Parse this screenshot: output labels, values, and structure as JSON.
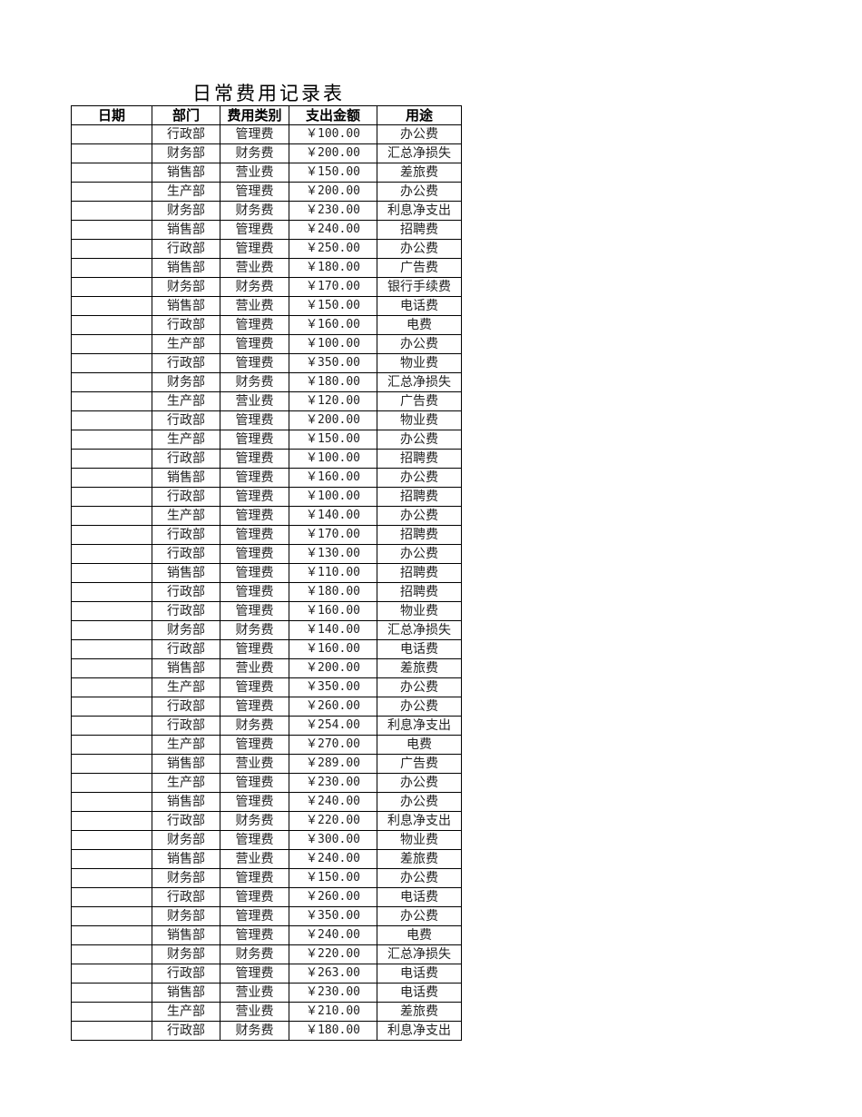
{
  "title": "日常费用记录表",
  "headers": [
    "日期",
    "部门",
    "费用类别",
    "支出金额",
    "用途"
  ],
  "rows": [
    {
      "date": "",
      "dept": "行政部",
      "category": "管理费",
      "amount": "￥100.00",
      "purpose": "办公费"
    },
    {
      "date": "",
      "dept": "财务部",
      "category": "财务费",
      "amount": "￥200.00",
      "purpose": "汇总净损失"
    },
    {
      "date": "",
      "dept": "销售部",
      "category": "营业费",
      "amount": "￥150.00",
      "purpose": "差旅费"
    },
    {
      "date": "",
      "dept": "生产部",
      "category": "管理费",
      "amount": "￥200.00",
      "purpose": "办公费"
    },
    {
      "date": "",
      "dept": "财务部",
      "category": "财务费",
      "amount": "￥230.00",
      "purpose": "利息净支出"
    },
    {
      "date": "",
      "dept": "销售部",
      "category": "管理费",
      "amount": "￥240.00",
      "purpose": "招聘费"
    },
    {
      "date": "",
      "dept": "行政部",
      "category": "管理费",
      "amount": "￥250.00",
      "purpose": "办公费"
    },
    {
      "date": "",
      "dept": "销售部",
      "category": "营业费",
      "amount": "￥180.00",
      "purpose": "广告费"
    },
    {
      "date": "",
      "dept": "财务部",
      "category": "财务费",
      "amount": "￥170.00",
      "purpose": "银行手续费"
    },
    {
      "date": "",
      "dept": "销售部",
      "category": "营业费",
      "amount": "￥150.00",
      "purpose": "电话费"
    },
    {
      "date": "",
      "dept": "行政部",
      "category": "管理费",
      "amount": "￥160.00",
      "purpose": "电费"
    },
    {
      "date": "",
      "dept": "生产部",
      "category": "管理费",
      "amount": "￥100.00",
      "purpose": "办公费"
    },
    {
      "date": "",
      "dept": "行政部",
      "category": "管理费",
      "amount": "￥350.00",
      "purpose": "物业费"
    },
    {
      "date": "",
      "dept": "财务部",
      "category": "财务费",
      "amount": "￥180.00",
      "purpose": "汇总净损失"
    },
    {
      "date": "",
      "dept": "生产部",
      "category": "营业费",
      "amount": "￥120.00",
      "purpose": "广告费"
    },
    {
      "date": "",
      "dept": "行政部",
      "category": "管理费",
      "amount": "￥200.00",
      "purpose": "物业费"
    },
    {
      "date": "",
      "dept": "生产部",
      "category": "管理费",
      "amount": "￥150.00",
      "purpose": "办公费"
    },
    {
      "date": "",
      "dept": "行政部",
      "category": "管理费",
      "amount": "￥100.00",
      "purpose": "招聘费"
    },
    {
      "date": "",
      "dept": "销售部",
      "category": "管理费",
      "amount": "￥160.00",
      "purpose": "办公费"
    },
    {
      "date": "",
      "dept": "行政部",
      "category": "管理费",
      "amount": "￥100.00",
      "purpose": "招聘费"
    },
    {
      "date": "",
      "dept": "生产部",
      "category": "管理费",
      "amount": "￥140.00",
      "purpose": "办公费"
    },
    {
      "date": "",
      "dept": "行政部",
      "category": "管理费",
      "amount": "￥170.00",
      "purpose": "招聘费"
    },
    {
      "date": "",
      "dept": "行政部",
      "category": "管理费",
      "amount": "￥130.00",
      "purpose": "办公费"
    },
    {
      "date": "",
      "dept": "销售部",
      "category": "管理费",
      "amount": "￥110.00",
      "purpose": "招聘费"
    },
    {
      "date": "",
      "dept": "行政部",
      "category": "管理费",
      "amount": "￥180.00",
      "purpose": "招聘费"
    },
    {
      "date": "",
      "dept": "行政部",
      "category": "管理费",
      "amount": "￥160.00",
      "purpose": "物业费"
    },
    {
      "date": "",
      "dept": "财务部",
      "category": "财务费",
      "amount": "￥140.00",
      "purpose": "汇总净损失"
    },
    {
      "date": "",
      "dept": "行政部",
      "category": "管理费",
      "amount": "￥160.00",
      "purpose": "电话费"
    },
    {
      "date": "",
      "dept": "销售部",
      "category": "营业费",
      "amount": "￥200.00",
      "purpose": "差旅费"
    },
    {
      "date": "",
      "dept": "生产部",
      "category": "管理费",
      "amount": "￥350.00",
      "purpose": "办公费"
    },
    {
      "date": "",
      "dept": "行政部",
      "category": "管理费",
      "amount": "￥260.00",
      "purpose": "办公费"
    },
    {
      "date": "",
      "dept": "行政部",
      "category": "财务费",
      "amount": "￥254.00",
      "purpose": "利息净支出"
    },
    {
      "date": "",
      "dept": "生产部",
      "category": "管理费",
      "amount": "￥270.00",
      "purpose": "电费"
    },
    {
      "date": "",
      "dept": "销售部",
      "category": "营业费",
      "amount": "￥289.00",
      "purpose": "广告费"
    },
    {
      "date": "",
      "dept": "生产部",
      "category": "管理费",
      "amount": "￥230.00",
      "purpose": "办公费"
    },
    {
      "date": "",
      "dept": "销售部",
      "category": "管理费",
      "amount": "￥240.00",
      "purpose": "办公费"
    },
    {
      "date": "",
      "dept": "行政部",
      "category": "财务费",
      "amount": "￥220.00",
      "purpose": "利息净支出"
    },
    {
      "date": "",
      "dept": "财务部",
      "category": "管理费",
      "amount": "￥300.00",
      "purpose": "物业费"
    },
    {
      "date": "",
      "dept": "销售部",
      "category": "营业费",
      "amount": "￥240.00",
      "purpose": "差旅费"
    },
    {
      "date": "",
      "dept": "财务部",
      "category": "管理费",
      "amount": "￥150.00",
      "purpose": "办公费"
    },
    {
      "date": "",
      "dept": "行政部",
      "category": "管理费",
      "amount": "￥260.00",
      "purpose": "电话费"
    },
    {
      "date": "",
      "dept": "财务部",
      "category": "管理费",
      "amount": "￥350.00",
      "purpose": "办公费"
    },
    {
      "date": "",
      "dept": "销售部",
      "category": "管理费",
      "amount": "￥240.00",
      "purpose": "电费"
    },
    {
      "date": "",
      "dept": "财务部",
      "category": "财务费",
      "amount": "￥220.00",
      "purpose": "汇总净损失"
    },
    {
      "date": "",
      "dept": "行政部",
      "category": "管理费",
      "amount": "￥263.00",
      "purpose": "电话费"
    },
    {
      "date": "",
      "dept": "销售部",
      "category": "营业费",
      "amount": "￥230.00",
      "purpose": "电话费"
    },
    {
      "date": "",
      "dept": "生产部",
      "category": "营业费",
      "amount": "￥210.00",
      "purpose": "差旅费"
    },
    {
      "date": "",
      "dept": "行政部",
      "category": "财务费",
      "amount": "￥180.00",
      "purpose": "利息净支出"
    }
  ]
}
